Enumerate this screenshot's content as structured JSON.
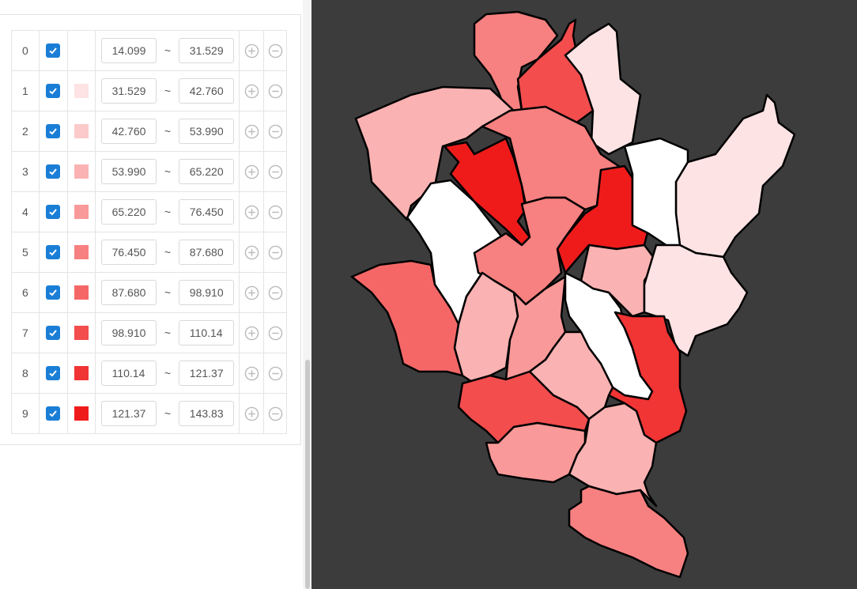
{
  "ranges": {
    "rows": [
      {
        "index": 0,
        "min": "14.099",
        "max": "31.529"
      },
      {
        "index": 1,
        "color": "#fde3e3",
        "min": "31.529",
        "max": "42.760"
      },
      {
        "index": 2,
        "color": "#fccaca",
        "min": "42.760",
        "max": "53.990"
      },
      {
        "index": 3,
        "color": "#fbb2b2",
        "min": "53.990",
        "max": "65.220"
      },
      {
        "index": 4,
        "color": "#f99999",
        "min": "65.220",
        "max": "76.450"
      },
      {
        "index": 5,
        "color": "#f78080",
        "min": "76.450",
        "max": "87.680"
      },
      {
        "index": 6,
        "color": "#f56767",
        "min": "87.680",
        "max": "98.910"
      },
      {
        "index": 7,
        "color": "#f34d4d",
        "min": "98.910",
        "max": "110.14"
      },
      {
        "index": 8,
        "color": "#f13434",
        "min": "110.14",
        "max": "121.37"
      },
      {
        "index": 9,
        "color": "#ef1b1b",
        "min": "121.37",
        "max": "143.83"
      }
    ],
    "separator": "~"
  }
}
